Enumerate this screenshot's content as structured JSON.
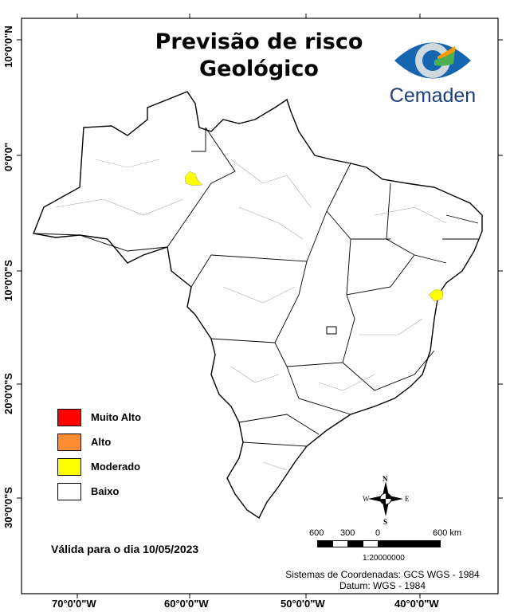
{
  "title_line1": "Previsão de risco",
  "title_line2": "Geológico",
  "logo": {
    "text": "Cemaden"
  },
  "legend": [
    {
      "label": "Muito Alto",
      "color": "#ff0000"
    },
    {
      "label": "Alto",
      "color": "#ff8c33"
    },
    {
      "label": "Moderado",
      "color": "#ffff00"
    },
    {
      "label": "Baixo",
      "color": "#ffffff"
    }
  ],
  "valid_date": "Válida para o dia 10/05/2023",
  "lat_ticks": [
    "10°0'0\"N",
    "0°0'0\"",
    "10°0'0\"S",
    "20°0'0\"S",
    "30°0'0\"S"
  ],
  "lon_ticks": [
    "70°0'0\"W",
    "60°0'0\"W",
    "50°0'0\"W",
    "40°0'0\"W"
  ],
  "compass": {
    "n": "N",
    "s": "S",
    "e": "E",
    "w": "W"
  },
  "scale_bar": {
    "labels": [
      "600",
      "300",
      "0",
      "600 km"
    ],
    "ratio": "1:20000000"
  },
  "crs": "Sistemas de Coordenadas: GCS WGS - 1984",
  "datum": "Datum: WGS - 1984"
}
